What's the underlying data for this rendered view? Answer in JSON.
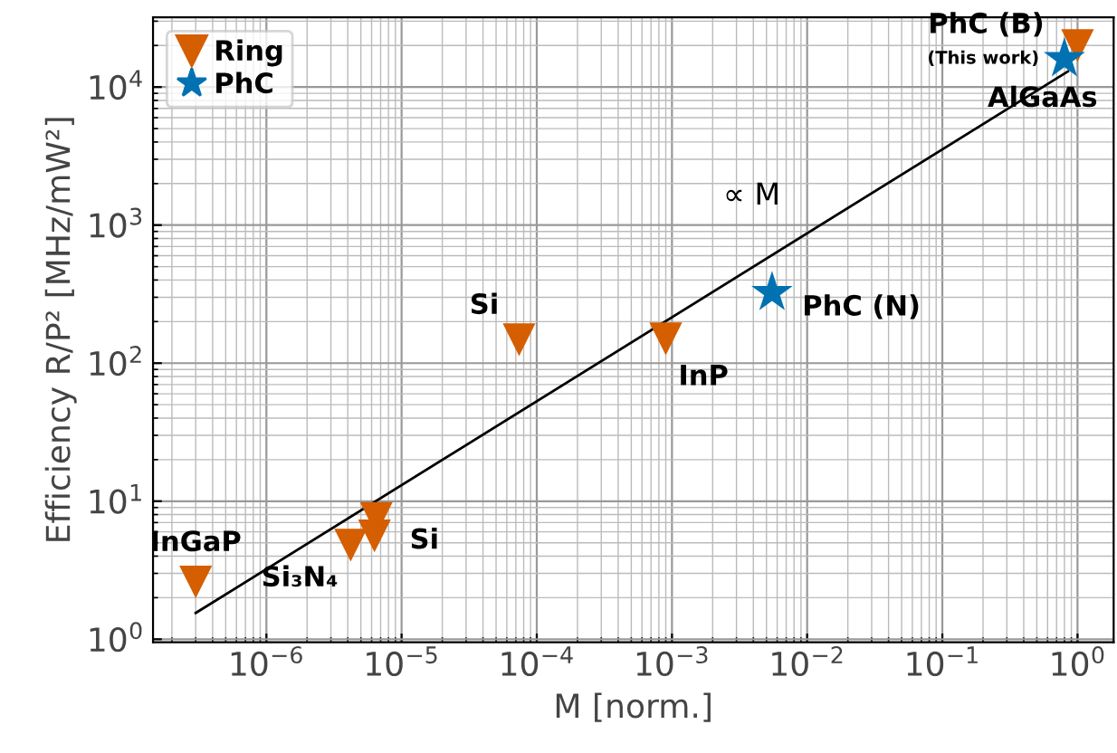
{
  "chart_data": {
    "type": "scatter",
    "xlabel": "M [norm.]",
    "ylabel": "Efficiency R/P² [MHz/mW²]",
    "log": "xy",
    "grid": true,
    "legend": "top left",
    "xlim": [
      1.45e-07,
      1.85
    ],
    "ylim": [
      0.95,
      32000
    ],
    "xticks": [
      {
        "value": 1e-06,
        "label": "10$^{−6}$"
      },
      {
        "value": 1e-05,
        "label": "10$^{−5}$"
      },
      {
        "value": 0.0001,
        "label": "10$^{−4}$"
      },
      {
        "value": 0.001,
        "label": "10$^{−3}$"
      },
      {
        "value": 0.01,
        "label": "10$^{−2}$"
      },
      {
        "value": 0.1,
        "label": "10$^{−1}$"
      },
      {
        "value": 1,
        "label": "10$^{0}$"
      }
    ],
    "yticks": [
      {
        "value": 1,
        "label": "10$^{0}$"
      },
      {
        "value": 10,
        "label": "10$^{1}$"
      },
      {
        "value": 100,
        "label": "10$^{2}$"
      },
      {
        "value": 1000,
        "label": "10$^{3}$"
      },
      {
        "value": 10000,
        "label": "10$^{4}$"
      }
    ],
    "series": [
      {
        "type": "line",
        "color": "#000000",
        "marker": "none",
        "line_style": "solid",
        "x": [
          3e-07,
          0.85
        ],
        "values": [
          1.55,
          13000
        ]
      },
      {
        "name": "Ring",
        "color": "#d55e00",
        "marker": "triangle",
        "x": [
          3e-07,
          4.2e-06,
          6.3e-06,
          6.5e-06,
          7.4e-05,
          0.0009,
          1.0
        ],
        "values": [
          2.6,
          4.8,
          5.6,
          7.5,
          148,
          150,
          20000
        ]
      },
      {
        "name": "PhC",
        "color": "#0072b2",
        "marker": "star",
        "x": [
          0.0055,
          0.8
        ],
        "values": [
          324,
          16000
        ]
      }
    ],
    "annotations": [
      {
        "text": "InGaP",
        "x": 3e-07,
        "y": 2.6
      },
      {
        "text": "Si₃N₄",
        "x": 4.2e-06,
        "y": 4.8
      },
      {
        "text": "Si",
        "x": 6.3e-06,
        "y": 5.6
      },
      {
        "text": "Si",
        "x": 7.4e-05,
        "y": 148
      },
      {
        "text": "InP",
        "x": 0.0009,
        "y": 150
      },
      {
        "text": "PhC (N)",
        "x": 0.0055,
        "y": 324
      },
      {
        "text": "PhC (B)",
        "x": 0.8,
        "y": 16000
      },
      {
        "text": "(This work)",
        "x": 0.8,
        "y": 16000
      },
      {
        "text": "AlGaAs",
        "x": 1.0,
        "y": 20000
      },
      {
        "text": "∝ M",
        "x": 0.01,
        "y": 900
      }
    ]
  }
}
